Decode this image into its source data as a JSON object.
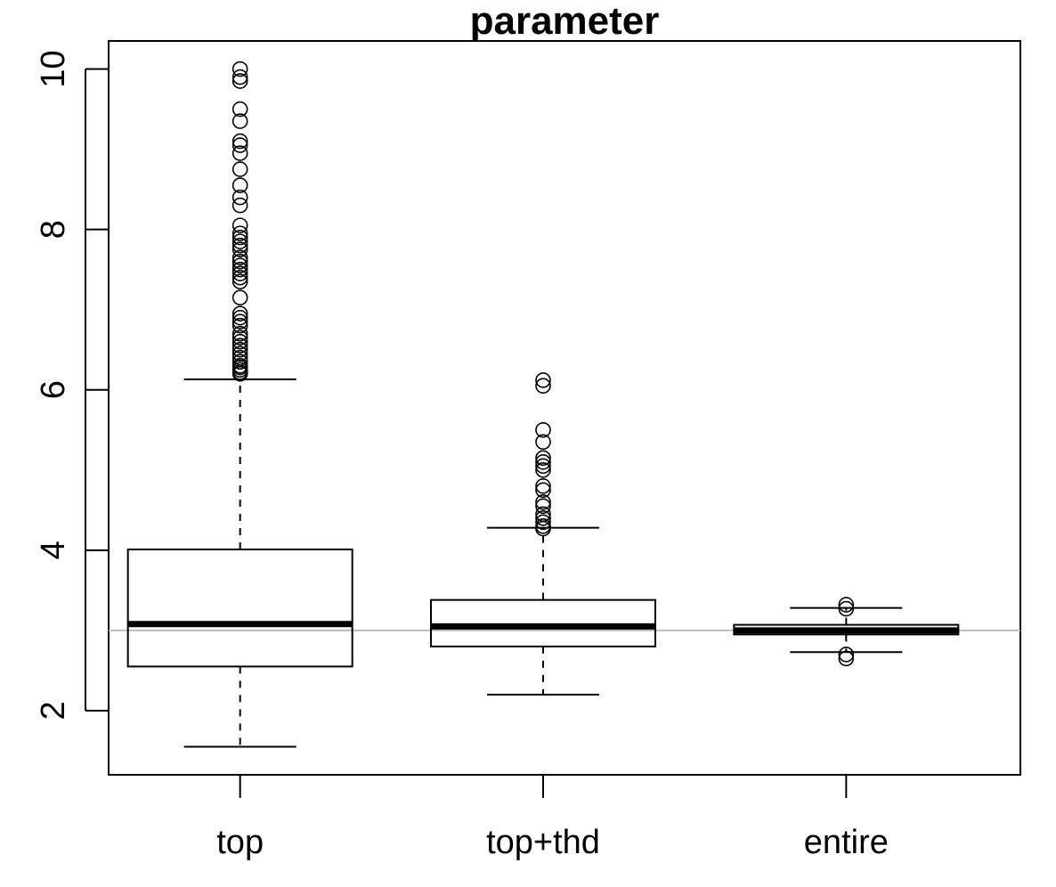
{
  "chart_data": {
    "type": "boxplot",
    "title": "parameter",
    "xlabel": "",
    "ylabel": "",
    "ylim": [
      1.2,
      10.35
    ],
    "yticks": [
      2,
      4,
      6,
      8,
      10
    ],
    "categories": [
      "top",
      "top+thd",
      "entire"
    ],
    "reference_line": {
      "y": 3.0,
      "color": "#bdbdbd"
    },
    "grid": false,
    "boxes": [
      {
        "name": "top",
        "whisker_low": 1.55,
        "q1": 2.55,
        "median": 3.08,
        "q3": 4.01,
        "whisker_high": 6.13,
        "outliers": [
          6.2,
          6.22,
          6.25,
          6.28,
          6.3,
          6.35,
          6.4,
          6.45,
          6.5,
          6.55,
          6.6,
          6.65,
          6.7,
          6.8,
          6.85,
          6.9,
          6.95,
          7.15,
          7.35,
          7.4,
          7.45,
          7.5,
          7.55,
          7.6,
          7.65,
          7.75,
          7.8,
          7.85,
          7.9,
          7.95,
          8.05,
          8.3,
          8.4,
          8.55,
          8.75,
          8.95,
          9.05,
          9.1,
          9.35,
          9.5,
          9.85,
          9.9,
          10.0
        ]
      },
      {
        "name": "top+thd",
        "whisker_low": 2.2,
        "q1": 2.8,
        "median": 3.05,
        "q3": 3.38,
        "whisker_high": 4.28,
        "outliers": [
          4.27,
          4.3,
          4.35,
          4.4,
          4.45,
          4.55,
          4.6,
          4.75,
          4.8,
          5.0,
          5.05,
          5.1,
          5.15,
          5.35,
          5.5,
          6.05,
          6.12
        ]
      },
      {
        "name": "entire",
        "whisker_low": 2.73,
        "q1": 2.95,
        "median": 3.0,
        "q3": 3.07,
        "whisker_high": 3.28,
        "outliers": [
          2.65,
          2.7,
          3.27,
          3.32
        ]
      }
    ]
  }
}
